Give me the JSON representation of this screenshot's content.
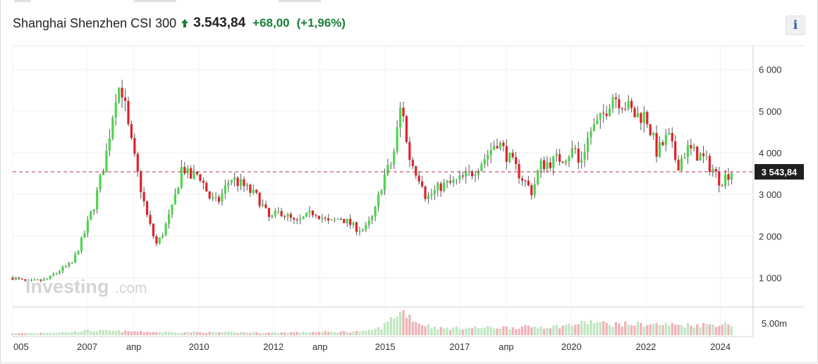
{
  "header": {
    "instrument": "Shanghai Shenzhen CSI 300",
    "price": "3.543,84",
    "change": "+68,00",
    "change_pct": "(+1,96%)",
    "direction_icon": "arrow-up-icon",
    "info_label": "i"
  },
  "colors": {
    "up": "#4fd44f",
    "down": "#e0202a",
    "wick": "#555555",
    "price_line": "#b03040",
    "price_tag_bg": "#1f1f1f",
    "change_green": "#1a7f37",
    "volume_up": "#bfe6bf",
    "volume_down": "#f0b0b5"
  },
  "watermark": {
    "brand": "Investing",
    "suffix": ".com"
  },
  "chart_data": {
    "type": "candlestick",
    "y_ticks": [
      "6 000",
      "5 000",
      "4 000",
      "3 000",
      "2 000",
      "1 000"
    ],
    "y_tick_values": [
      6000,
      5000,
      4000,
      3000,
      2000,
      1000
    ],
    "ylim": [
      400,
      6350
    ],
    "xlim": [
      2005.0,
      2024.5
    ],
    "x_ticks": [
      {
        "label": "005",
        "t": 2005.0
      },
      {
        "label": "2007",
        "t": 2007.0
      },
      {
        "label": "апр",
        "t": 2008.25
      },
      {
        "label": "2010",
        "t": 2010.0
      },
      {
        "label": "2012",
        "t": 2012.0
      },
      {
        "label": "апр",
        "t": 2013.25
      },
      {
        "label": "2015",
        "t": 2015.0
      },
      {
        "label": "2017",
        "t": 2017.0
      },
      {
        "label": "апр",
        "t": 2018.25
      },
      {
        "label": "2020",
        "t": 2020.0
      },
      {
        "label": "2022",
        "t": 2022.0
      },
      {
        "label": "2024",
        "t": 2024.0
      }
    ],
    "current_price": 3543.84,
    "current_price_label": "3 543,84",
    "volume_tick_label": "5.00m",
    "close_path": [
      [
        2005.0,
        1000
      ],
      [
        2005.4,
        900
      ],
      [
        2005.9,
        950
      ],
      [
        2006.3,
        1200
      ],
      [
        2006.6,
        1350
      ],
      [
        2006.9,
        2000
      ],
      [
        2007.2,
        2800
      ],
      [
        2007.5,
        3900
      ],
      [
        2007.8,
        5600
      ],
      [
        2007.95,
        5500
      ],
      [
        2008.1,
        4600
      ],
      [
        2008.35,
        3500
      ],
      [
        2008.6,
        2500
      ],
      [
        2008.85,
        1800
      ],
      [
        2009.0,
        2000
      ],
      [
        2009.3,
        2700
      ],
      [
        2009.55,
        3700
      ],
      [
        2009.75,
        3400
      ],
      [
        2010.0,
        3500
      ],
      [
        2010.3,
        2900
      ],
      [
        2010.5,
        2800
      ],
      [
        2010.85,
        3400
      ],
      [
        2011.2,
        3200
      ],
      [
        2011.6,
        2900
      ],
      [
        2011.9,
        2400
      ],
      [
        2012.2,
        2600
      ],
      [
        2012.6,
        2300
      ],
      [
        2012.95,
        2500
      ],
      [
        2013.1,
        2600
      ],
      [
        2013.5,
        2300
      ],
      [
        2013.8,
        2450
      ],
      [
        2014.2,
        2200
      ],
      [
        2014.45,
        2150
      ],
      [
        2014.7,
        2500
      ],
      [
        2014.95,
        3400
      ],
      [
        2015.2,
        3800
      ],
      [
        2015.45,
        5300
      ],
      [
        2015.6,
        4000
      ],
      [
        2015.8,
        3600
      ],
      [
        2016.0,
        3300
      ],
      [
        2016.1,
        2900
      ],
      [
        2016.5,
        3200
      ],
      [
        2016.9,
        3300
      ],
      [
        2017.3,
        3500
      ],
      [
        2017.7,
        3900
      ],
      [
        2018.0,
        4300
      ],
      [
        2018.3,
        3900
      ],
      [
        2018.6,
        3500
      ],
      [
        2018.95,
        3050
      ],
      [
        2019.15,
        3700
      ],
      [
        2019.5,
        3800
      ],
      [
        2019.8,
        3900
      ],
      [
        2020.1,
        4100
      ],
      [
        2020.2,
        3700
      ],
      [
        2020.5,
        4500
      ],
      [
        2020.8,
        4800
      ],
      [
        2021.1,
        5400
      ],
      [
        2021.4,
        5200
      ],
      [
        2021.7,
        4900
      ],
      [
        2022.0,
        4900
      ],
      [
        2022.3,
        4000
      ],
      [
        2022.6,
        4400
      ],
      [
        2022.85,
        3700
      ],
      [
        2023.1,
        4100
      ],
      [
        2023.5,
        3900
      ],
      [
        2023.8,
        3600
      ],
      [
        2024.0,
        3300
      ],
      [
        2024.15,
        3450
      ],
      [
        2024.3,
        3560
      ]
    ],
    "volume_path": [
      [
        2005.0,
        0.2
      ],
      [
        2006.5,
        0.35
      ],
      [
        2007.0,
        0.55
      ],
      [
        2008.0,
        0.45
      ],
      [
        2009.0,
        0.35
      ],
      [
        2010.0,
        0.35
      ],
      [
        2012.0,
        0.3
      ],
      [
        2014.5,
        0.45
      ],
      [
        2014.9,
        0.9
      ],
      [
        2015.3,
        2.5
      ],
      [
        2015.5,
        2.8
      ],
      [
        2015.9,
        1.4
      ],
      [
        2016.5,
        0.8
      ],
      [
        2018.0,
        0.9
      ],
      [
        2019.5,
        1.0
      ],
      [
        2020.0,
        1.2
      ],
      [
        2020.5,
        1.6
      ],
      [
        2021.0,
        1.3
      ],
      [
        2022.0,
        1.3
      ],
      [
        2023.0,
        1.2
      ],
      [
        2024.3,
        1.3
      ]
    ]
  }
}
